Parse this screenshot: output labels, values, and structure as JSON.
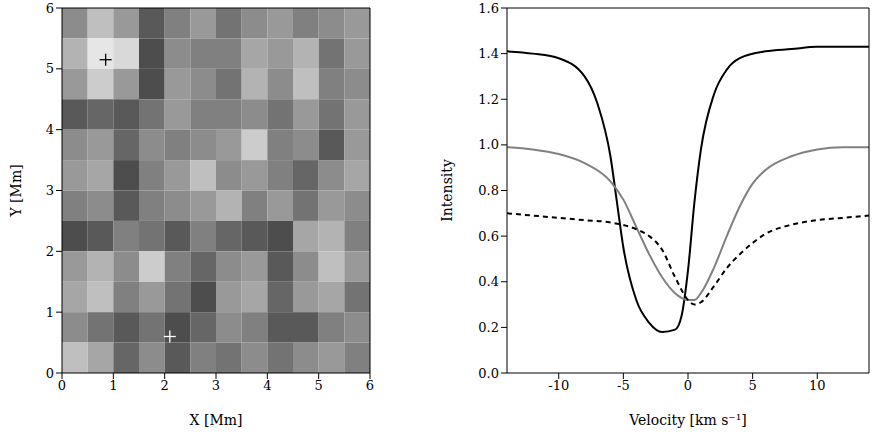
{
  "chart_data": [
    {
      "type": "heatmap",
      "xlabel": "X [Mm]",
      "ylabel": "Y [Mm]",
      "xlim": [
        0,
        6
      ],
      "ylim": [
        0,
        6
      ],
      "xticks": [
        0,
        1,
        2,
        3,
        4,
        5,
        6
      ],
      "yticks": [
        0,
        1,
        2,
        3,
        4,
        5,
        6
      ],
      "cell_range": [
        0,
        1
      ],
      "cells": [
        [
          0.55,
          0.75,
          0.6,
          0.35,
          0.5,
          0.6,
          0.45,
          0.55,
          0.6,
          0.5,
          0.55,
          0.6
        ],
        [
          0.7,
          0.9,
          0.85,
          0.3,
          0.55,
          0.5,
          0.5,
          0.65,
          0.6,
          0.7,
          0.45,
          0.6
        ],
        [
          0.6,
          0.8,
          0.6,
          0.3,
          0.6,
          0.55,
          0.45,
          0.7,
          0.55,
          0.75,
          0.5,
          0.55
        ],
        [
          0.35,
          0.4,
          0.35,
          0.45,
          0.6,
          0.5,
          0.5,
          0.55,
          0.45,
          0.6,
          0.45,
          0.6
        ],
        [
          0.55,
          0.6,
          0.4,
          0.55,
          0.5,
          0.55,
          0.6,
          0.8,
          0.5,
          0.55,
          0.35,
          0.6
        ],
        [
          0.6,
          0.65,
          0.3,
          0.5,
          0.6,
          0.75,
          0.55,
          0.6,
          0.5,
          0.4,
          0.55,
          0.65
        ],
        [
          0.5,
          0.55,
          0.35,
          0.5,
          0.55,
          0.6,
          0.7,
          0.5,
          0.6,
          0.45,
          0.6,
          0.55
        ],
        [
          0.3,
          0.35,
          0.5,
          0.45,
          0.35,
          0.5,
          0.4,
          0.35,
          0.3,
          0.65,
          0.7,
          0.5
        ],
        [
          0.6,
          0.7,
          0.55,
          0.8,
          0.5,
          0.4,
          0.55,
          0.6,
          0.35,
          0.55,
          0.75,
          0.6
        ],
        [
          0.65,
          0.75,
          0.5,
          0.6,
          0.45,
          0.3,
          0.6,
          0.65,
          0.4,
          0.6,
          0.65,
          0.45
        ],
        [
          0.55,
          0.45,
          0.35,
          0.45,
          0.3,
          0.4,
          0.55,
          0.5,
          0.35,
          0.35,
          0.5,
          0.55
        ],
        [
          0.75,
          0.65,
          0.4,
          0.55,
          0.35,
          0.5,
          0.45,
          0.55,
          0.45,
          0.55,
          0.6,
          0.5
        ]
      ],
      "series": [
        {
          "color": "#000000",
          "marker": "cross",
          "x": [
            0.85
          ],
          "values": [
            5.15
          ]
        },
        {
          "color": "#ffffff",
          "marker": "cross",
          "x": [
            2.1
          ],
          "values": [
            0.6
          ]
        }
      ]
    },
    {
      "type": "line",
      "xlabel": "Velocity [km s⁻¹]",
      "ylabel": "Intensity",
      "xlim": [
        -14,
        14
      ],
      "ylim": [
        0,
        1.6
      ],
      "xticks": [
        -10,
        -5,
        0,
        5,
        10
      ],
      "yticks": [
        {
          "value": 0,
          "label": "0.0"
        },
        0.2,
        0.4,
        0.6,
        0.8,
        {
          "value": 1,
          "label": "1.0"
        },
        1.2,
        1.4,
        1.6
      ],
      "series": [
        {
          "color": "#000000",
          "line_style": "solid",
          "x": [
            -14,
            -12,
            -10,
            -8,
            -7,
            -6,
            -5.5,
            -5,
            -4,
            -3,
            -2,
            -1,
            -0.5,
            0,
            0.5,
            1,
            2,
            3,
            4,
            6,
            8,
            10,
            12,
            14
          ],
          "values": [
            1.41,
            1.4,
            1.38,
            1.3,
            1.18,
            0.95,
            0.75,
            0.55,
            0.32,
            0.22,
            0.18,
            0.19,
            0.25,
            0.45,
            0.75,
            0.98,
            1.22,
            1.33,
            1.38,
            1.41,
            1.42,
            1.43,
            1.43,
            1.43
          ]
        },
        {
          "color": "#808080",
          "line_style": "solid",
          "x": [
            -14,
            -12,
            -10,
            -8,
            -6,
            -5,
            -4,
            -3,
            -2,
            -1,
            0,
            0.5,
            1,
            2,
            3,
            4,
            5,
            6,
            8,
            10,
            12,
            14
          ],
          "values": [
            0.99,
            0.98,
            0.96,
            0.92,
            0.84,
            0.76,
            0.64,
            0.52,
            0.42,
            0.35,
            0.32,
            0.32,
            0.35,
            0.46,
            0.6,
            0.73,
            0.83,
            0.89,
            0.95,
            0.98,
            0.99,
            0.99
          ]
        },
        {
          "color": "#000000",
          "line_style": "dashed",
          "x": [
            -14,
            -12,
            -10,
            -8,
            -6,
            -4,
            -3,
            -2,
            -1,
            0,
            0.5,
            1,
            2,
            3,
            4,
            5,
            6,
            8,
            10,
            12,
            14
          ],
          "values": [
            0.7,
            0.69,
            0.68,
            0.67,
            0.66,
            0.63,
            0.6,
            0.54,
            0.42,
            0.32,
            0.3,
            0.31,
            0.38,
            0.46,
            0.52,
            0.57,
            0.61,
            0.65,
            0.67,
            0.68,
            0.69
          ]
        }
      ]
    }
  ]
}
